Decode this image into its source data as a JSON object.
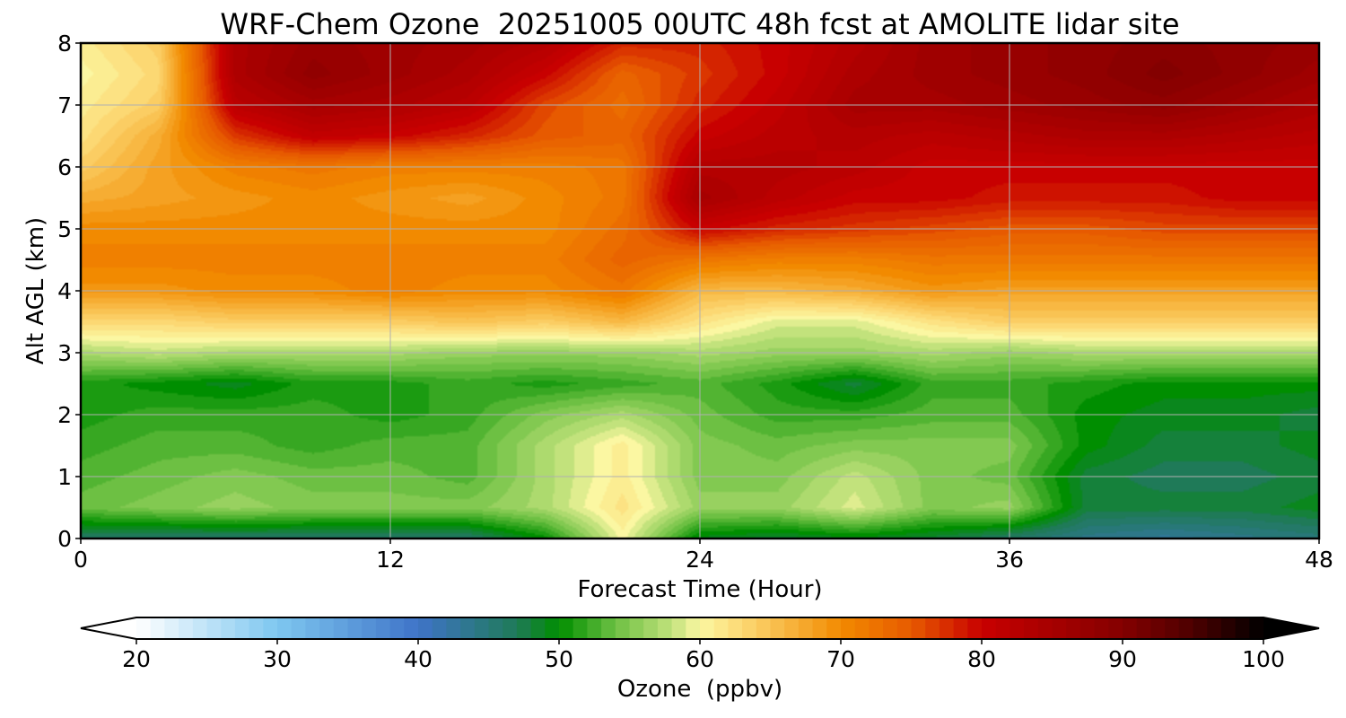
{
  "chart_data": {
    "type": "heatmap",
    "title": "WRF-Chem Ozone  20251005 00UTC 48h fcst at AMOLITE lidar site",
    "xlabel": "Forecast Time (Hour)",
    "ylabel": "Alt AGL (km)",
    "xlim": [
      0,
      48
    ],
    "ylim": [
      0,
      8
    ],
    "x_ticks": [
      "0",
      "12",
      "24",
      "36",
      "48"
    ],
    "y_ticks": [
      "0",
      "1",
      "2",
      "3",
      "4",
      "5",
      "6",
      "7",
      "8"
    ],
    "grid": true,
    "x": [
      0,
      3,
      6,
      9,
      12,
      15,
      18,
      21,
      24,
      27,
      30,
      33,
      36,
      39,
      42,
      45,
      48
    ],
    "y": [
      0,
      0.5,
      1,
      1.5,
      2,
      2.5,
      3,
      3.5,
      4,
      4.5,
      5,
      5.5,
      6,
      6.5,
      7,
      7.5,
      8
    ],
    "z": [
      [
        46,
        46,
        46,
        46,
        46,
        46,
        50,
        60,
        49,
        48,
        49,
        48,
        46,
        44,
        43,
        44,
        45
      ],
      [
        54,
        55,
        56,
        55,
        55,
        55,
        57,
        62,
        56,
        56,
        59,
        55,
        56,
        48,
        48,
        48,
        49
      ],
      [
        53,
        54,
        55,
        54,
        54,
        53,
        57,
        61,
        55,
        55,
        58,
        55,
        54,
        48,
        47,
        47,
        48
      ],
      [
        52,
        53,
        53,
        52,
        53,
        53,
        57,
        61,
        55,
        54,
        55,
        55,
        55,
        50,
        48,
        48,
        49
      ],
      [
        51,
        52,
        52,
        52,
        51,
        52,
        55,
        57,
        54,
        52,
        52,
        53,
        53,
        50,
        49,
        49,
        48
      ],
      [
        51,
        50,
        49,
        51,
        51,
        52,
        51,
        52,
        53,
        51,
        48,
        52,
        52,
        51,
        50,
        50,
        50
      ],
      [
        57,
        58,
        57,
        57,
        57,
        56,
        56,
        56,
        57,
        56,
        56,
        57,
        56,
        57,
        57,
        57,
        57
      ],
      [
        63,
        63,
        64,
        64,
        64,
        65,
        64,
        66,
        62,
        59,
        59,
        62,
        64,
        64,
        64,
        64,
        64
      ],
      [
        69,
        69,
        70,
        70,
        71,
        70,
        70,
        72,
        66,
        66,
        67,
        69,
        68,
        68,
        68,
        68,
        68
      ],
      [
        71,
        71,
        71,
        71,
        71,
        71,
        71,
        74,
        72,
        71,
        71,
        72,
        72,
        72,
        72,
        72,
        72
      ],
      [
        70,
        70,
        70,
        70,
        70,
        70,
        70,
        73,
        80,
        78,
        77,
        76,
        75,
        75,
        76,
        76,
        76
      ],
      [
        67,
        68,
        69,
        70,
        69,
        68,
        70,
        72,
        85,
        82,
        80,
        80,
        79,
        79,
        79,
        80,
        80
      ],
      [
        64,
        68,
        71,
        72,
        71,
        71,
        71,
        72,
        83,
        83,
        82,
        80,
        80,
        80,
        80,
        80,
        80
      ],
      [
        62,
        67,
        77,
        81,
        80,
        78,
        75,
        74,
        80,
        82,
        83,
        82,
        83,
        84,
        84,
        83,
        82
      ],
      [
        61,
        64,
        82,
        85,
        84,
        82,
        76,
        73,
        78,
        81,
        85,
        85,
        86,
        87,
        88,
        86,
        84
      ],
      [
        60,
        63,
        84,
        88,
        86,
        84,
        80,
        74,
        77,
        80,
        84,
        86,
        87,
        88,
        90,
        88,
        86
      ],
      [
        61,
        64,
        84,
        87,
        86,
        85,
        83,
        78,
        78,
        80,
        83,
        86,
        87,
        88,
        89,
        88,
        87
      ]
    ],
    "colorbar": {
      "label": "Ozone  (ppbv)",
      "min": 20,
      "max": 100,
      "ticks": [
        "20",
        "30",
        "40",
        "50",
        "60",
        "70",
        "80",
        "90",
        "100"
      ],
      "extend": "both",
      "stops": [
        {
          "v": 20,
          "c": "#ffffff"
        },
        {
          "v": 30,
          "c": "#7ec7f0"
        },
        {
          "v": 40,
          "c": "#3f74c8"
        },
        {
          "v": 47,
          "c": "#1f7a58"
        },
        {
          "v": 50,
          "c": "#008e00"
        },
        {
          "v": 54,
          "c": "#6dc043"
        },
        {
          "v": 58,
          "c": "#c2e27c"
        },
        {
          "v": 60,
          "c": "#fbf7a2"
        },
        {
          "v": 63,
          "c": "#fcd873"
        },
        {
          "v": 67,
          "c": "#f6ad33"
        },
        {
          "v": 70,
          "c": "#f28a00"
        },
        {
          "v": 75,
          "c": "#e75a00"
        },
        {
          "v": 80,
          "c": "#c80000"
        },
        {
          "v": 85,
          "c": "#a60000"
        },
        {
          "v": 90,
          "c": "#830000"
        },
        {
          "v": 95,
          "c": "#4c0000"
        },
        {
          "v": 100,
          "c": "#000000"
        }
      ]
    }
  }
}
